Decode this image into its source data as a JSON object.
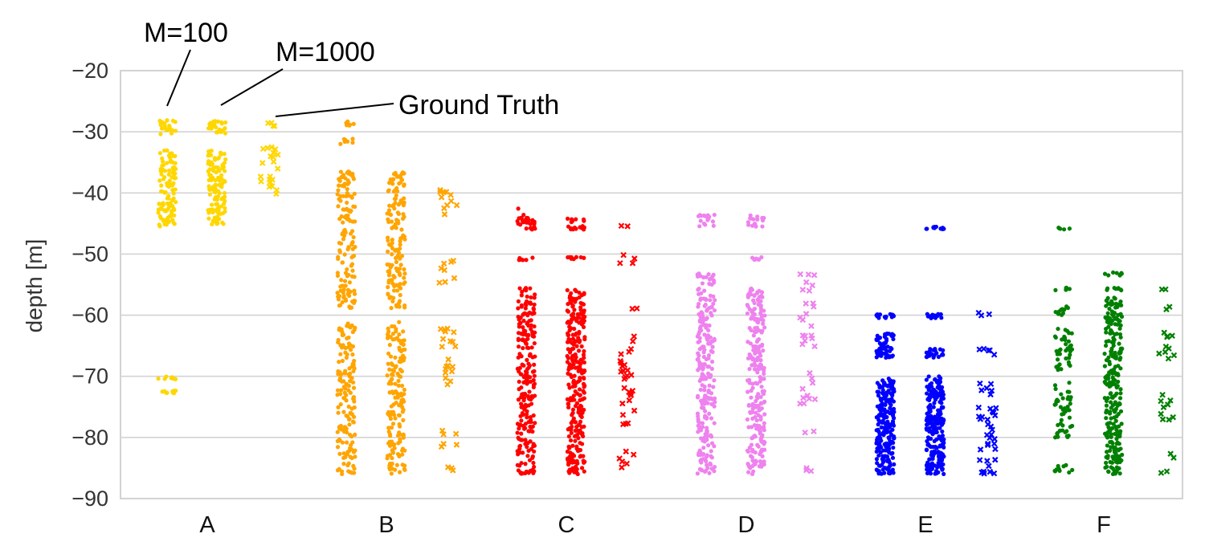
{
  "chart_data": {
    "type": "scatter",
    "style": "categorical strip plot, three jittered columns per category",
    "ylabel": "depth [m]",
    "xlabel": "",
    "ylim": [
      -90,
      -20
    ],
    "yticks": [
      -20,
      -30,
      -40,
      -50,
      -60,
      -70,
      -80,
      -90
    ],
    "categories": [
      "A",
      "B",
      "C",
      "D",
      "E",
      "F"
    ],
    "columns": [
      "M=100",
      "M=1000",
      "Ground Truth"
    ],
    "annotations": [
      {
        "text": "M=100",
        "points_to": "A / M=100"
      },
      {
        "text": "M=1000",
        "points_to": "A / M=1000"
      },
      {
        "text": "Ground Truth",
        "points_to": "A / Ground Truth"
      }
    ],
    "grid": true,
    "series": [
      {
        "name": "A",
        "color": "#ffd700",
        "columns": [
          {
            "label": "M=100",
            "marker": "dot",
            "count": 150,
            "ranges": [
              [
                -30.5,
                -28
              ],
              [
                -38,
                -33
              ],
              [
                -44,
                -38
              ],
              [
                -45.5,
                -44
              ],
              [
                -70.5,
                -70
              ],
              [
                -72.8,
                -72
              ]
            ]
          },
          {
            "label": "M=1000",
            "marker": "dot",
            "count": 150,
            "ranges": [
              [
                -30.5,
                -28
              ],
              [
                -38,
                -33
              ],
              [
                -44,
                -38
              ],
              [
                -45.2,
                -44
              ]
            ]
          },
          {
            "label": "Ground Truth",
            "marker": "x",
            "count": 26,
            "ranges": [
              [
                -30,
                -28.5
              ],
              [
                -37,
                -32.5
              ],
              [
                -41,
                -37
              ]
            ]
          }
        ]
      },
      {
        "name": "B",
        "color": "#ffa500",
        "columns": [
          {
            "label": "M=100",
            "marker": "dot",
            "count": 300,
            "ranges": [
              [
                -29,
                -28.3
              ],
              [
                -32,
                -31
              ],
              [
                -48,
                -36.5
              ],
              [
                -59,
                -48
              ],
              [
                -73,
                -61
              ],
              [
                -81,
                -73
              ],
              [
                -83.5,
                -81
              ],
              [
                -86,
                -84
              ]
            ]
          },
          {
            "label": "M=1000",
            "marker": "dot",
            "count": 300,
            "ranges": [
              [
                -48,
                -36.5
              ],
              [
                -59,
                -48
              ],
              [
                -73,
                -61
              ],
              [
                -81,
                -73
              ],
              [
                -83.5,
                -81
              ],
              [
                -86,
                -84
              ]
            ]
          },
          {
            "label": "Ground Truth",
            "marker": "x",
            "count": 48,
            "ranges": [
              [
                -45,
                -39.5
              ],
              [
                -55,
                -51
              ],
              [
                -72,
                -62
              ],
              [
                -79.5,
                -78.5
              ],
              [
                -82,
                -81
              ],
              [
                -85.5,
                -84.5
              ]
            ]
          }
        ]
      },
      {
        "name": "C",
        "color": "#ff0000",
        "columns": [
          {
            "label": "M=100",
            "marker": "dot",
            "count": 260,
            "ranges": [
              [
                -46,
                -42.5
              ],
              [
                -51,
                -50.5
              ],
              [
                -62,
                -55.5
              ],
              [
                -73,
                -62
              ],
              [
                -80,
                -73
              ],
              [
                -86,
                -80
              ]
            ]
          },
          {
            "label": "M=1000",
            "marker": "dot",
            "count": 300,
            "ranges": [
              [
                -46,
                -44
              ],
              [
                -51,
                -50.5
              ],
              [
                -62,
                -55.5
              ],
              [
                -73,
                -62
              ],
              [
                -80,
                -73
              ],
              [
                -86,
                -80
              ]
            ]
          },
          {
            "label": "Ground Truth",
            "marker": "x",
            "count": 42,
            "ranges": [
              [
                -45.5,
                -45.3
              ],
              [
                -52,
                -50
              ],
              [
                -59,
                -58.5
              ],
              [
                -72,
                -63
              ],
              [
                -78,
                -72
              ],
              [
                -85,
                -82
              ]
            ]
          }
        ]
      },
      {
        "name": "D",
        "color": "#ee82ee",
        "columns": [
          {
            "label": "M=100",
            "marker": "dot",
            "count": 260,
            "ranges": [
              [
                -45.5,
                -43.5
              ],
              [
                -55,
                -53
              ],
              [
                -62,
                -55.5
              ],
              [
                -73,
                -62
              ],
              [
                -80,
                -73
              ],
              [
                -86,
                -80
              ]
            ]
          },
          {
            "label": "M=1000",
            "marker": "dot",
            "count": 260,
            "ranges": [
              [
                -45.5,
                -43.5
              ],
              [
                -51,
                -50.5
              ],
              [
                -62,
                -55.5
              ],
              [
                -73,
                -62
              ],
              [
                -80,
                -73
              ],
              [
                -86,
                -80
              ]
            ]
          },
          {
            "label": "Ground Truth",
            "marker": "x",
            "count": 34,
            "ranges": [
              [
                -57,
                -53
              ],
              [
                -62,
                -58
              ],
              [
                -67,
                -63
              ],
              [
                -75,
                -69
              ],
              [
                -80,
                -79
              ],
              [
                -86,
                -84.5
              ]
            ]
          }
        ]
      },
      {
        "name": "E",
        "color": "#0000ff",
        "columns": [
          {
            "label": "M=100",
            "marker": "dot",
            "count": 280,
            "ranges": [
              [
                -60.5,
                -59.8
              ],
              [
                -67,
                -63
              ],
              [
                -73,
                -70
              ],
              [
                -80,
                -73
              ],
              [
                -86,
                -80
              ]
            ]
          },
          {
            "label": "M=1000",
            "marker": "dot",
            "count": 280,
            "ranges": [
              [
                -46,
                -45.5
              ],
              [
                -60.5,
                -59.8
              ],
              [
                -67,
                -65.5
              ],
              [
                -73,
                -70
              ],
              [
                -80,
                -73
              ],
              [
                -86,
                -80
              ]
            ]
          },
          {
            "label": "Ground Truth",
            "marker": "x",
            "count": 46,
            "ranges": [
              [
                -60.2,
                -59.6
              ],
              [
                -67,
                -65.5
              ],
              [
                -73,
                -71
              ],
              [
                -80,
                -74
              ],
              [
                -86,
                -80
              ]
            ]
          }
        ]
      },
      {
        "name": "F",
        "color": "#008000",
        "columns": [
          {
            "label": "M=100",
            "marker": "dot",
            "count": 120,
            "ranges": [
              [
                -46,
                -45.5
              ],
              [
                -56,
                -55.5
              ],
              [
                -60,
                -58.5
              ],
              [
                -69,
                -62
              ],
              [
                -80,
                -71
              ],
              [
                -86,
                -84.5
              ]
            ]
          },
          {
            "label": "M=1000",
            "marker": "dot",
            "count": 280,
            "ranges": [
              [
                -53.5,
                -53
              ],
              [
                -56,
                -55.5
              ],
              [
                -66,
                -57
              ],
              [
                -73,
                -66
              ],
              [
                -80,
                -73
              ],
              [
                -84,
                -80
              ],
              [
                -86,
                -84
              ]
            ]
          },
          {
            "label": "Ground Truth",
            "marker": "x",
            "count": 26,
            "ranges": [
              [
                -56,
                -55.5
              ],
              [
                -59.5,
                -58.5
              ],
              [
                -68,
                -62
              ],
              [
                -78,
                -73
              ],
              [
                -83.5,
                -82.5
              ],
              [
                -86,
                -85.5
              ]
            ]
          }
        ]
      }
    ]
  }
}
